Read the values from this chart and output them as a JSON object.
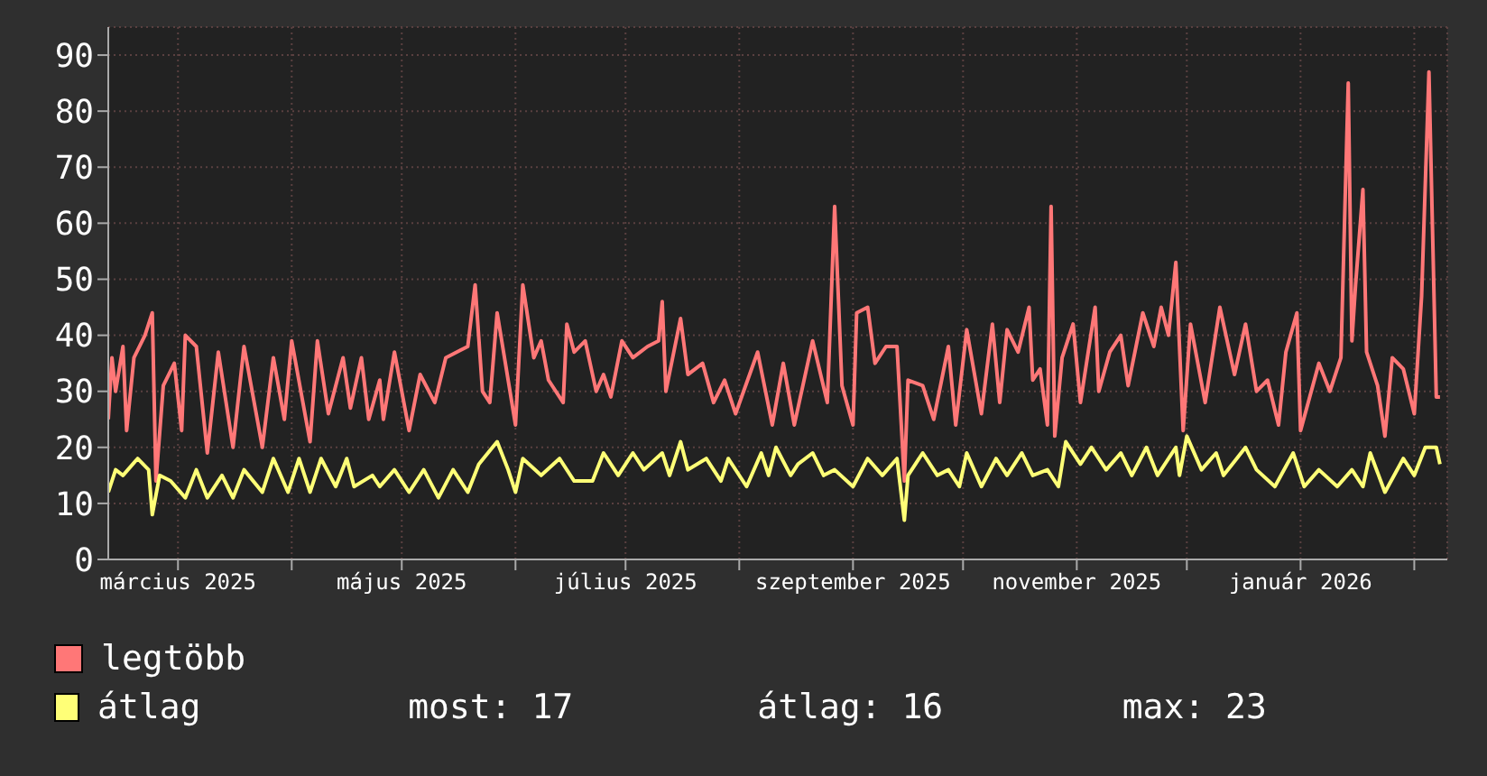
{
  "chart_data": {
    "type": "line",
    "xlim": [
      "2025-02-10",
      "2026-02-10"
    ],
    "xticks": [
      {
        "value": "2025-03-01",
        "label": "március 2025"
      },
      {
        "value": "2025-04-01",
        "label": null
      },
      {
        "value": "2025-05-01",
        "label": "május 2025"
      },
      {
        "value": "2025-06-01",
        "label": null
      },
      {
        "value": "2025-07-01",
        "label": "július 2025"
      },
      {
        "value": "2025-08-01",
        "label": null
      },
      {
        "value": "2025-09-01",
        "label": "szeptember 2025"
      },
      {
        "value": "2025-10-01",
        "label": null
      },
      {
        "value": "2025-11-01",
        "label": "november 2025"
      },
      {
        "value": "2025-12-01",
        "label": null
      },
      {
        "value": "2026-01-01",
        "label": "január 2026"
      },
      {
        "value": "2026-02-01",
        "label": null
      }
    ],
    "ylim": [
      0,
      95
    ],
    "yticks": [
      0,
      10,
      20,
      30,
      40,
      50,
      60,
      70,
      80,
      90
    ],
    "grid": true,
    "legend": "bottom",
    "marker": "none",
    "line_style": "solid",
    "annotations": [
      "most: 17",
      "átlag: 16",
      "max: 23"
    ],
    "series": [
      {
        "name": "legtöbb",
        "color": "#ff7777",
        "x": [
          "2025-02-10",
          "2025-02-11",
          "2025-02-12",
          "2025-02-14",
          "2025-02-15",
          "2025-02-17",
          "2025-02-20",
          "2025-02-22",
          "2025-02-23",
          "2025-02-25",
          "2025-02-28",
          "2025-03-02",
          "2025-03-03",
          "2025-03-06",
          "2025-03-09",
          "2025-03-12",
          "2025-03-16",
          "2025-03-19",
          "2025-03-24",
          "2025-03-27",
          "2025-03-30",
          "2025-04-01",
          "2025-04-06",
          "2025-04-08",
          "2025-04-11",
          "2025-04-15",
          "2025-04-17",
          "2025-04-20",
          "2025-04-22",
          "2025-04-25",
          "2025-04-26",
          "2025-04-29",
          "2025-05-03",
          "2025-05-06",
          "2025-05-10",
          "2025-05-13",
          "2025-05-19",
          "2025-05-21",
          "2025-05-23",
          "2025-05-25",
          "2025-05-27",
          "2025-06-01",
          "2025-06-03",
          "2025-06-06",
          "2025-06-08",
          "2025-06-10",
          "2025-06-14",
          "2025-06-15",
          "2025-06-17",
          "2025-06-20",
          "2025-06-23",
          "2025-06-25",
          "2025-06-27",
          "2025-06-30",
          "2025-07-03",
          "2025-07-07",
          "2025-07-10",
          "2025-07-11",
          "2025-07-12",
          "2025-07-16",
          "2025-07-18",
          "2025-07-22",
          "2025-07-25",
          "2025-07-28",
          "2025-07-31",
          "2025-08-06",
          "2025-08-10",
          "2025-08-13",
          "2025-08-16",
          "2025-08-21",
          "2025-08-25",
          "2025-08-27",
          "2025-08-29",
          "2025-09-01",
          "2025-09-02",
          "2025-09-05",
          "2025-09-07",
          "2025-09-10",
          "2025-09-13",
          "2025-09-15",
          "2025-09-16",
          "2025-09-20",
          "2025-09-23",
          "2025-09-27",
          "2025-09-29",
          "2025-10-02",
          "2025-10-06",
          "2025-10-09",
          "2025-10-11",
          "2025-10-13",
          "2025-10-16",
          "2025-10-19",
          "2025-10-20",
          "2025-10-22",
          "2025-10-24",
          "2025-10-25",
          "2025-10-26",
          "2025-10-28",
          "2025-10-31",
          "2025-11-02",
          "2025-11-06",
          "2025-11-07",
          "2025-11-10",
          "2025-11-13",
          "2025-11-15",
          "2025-11-19",
          "2025-11-22",
          "2025-11-24",
          "2025-11-26",
          "2025-11-28",
          "2025-11-30",
          "2025-12-02",
          "2025-12-06",
          "2025-12-10",
          "2025-12-14",
          "2025-12-17",
          "2025-12-20",
          "2025-12-23",
          "2025-12-26",
          "2025-12-28",
          "2025-12-31",
          "2026-01-01",
          "2026-01-06",
          "2026-01-09",
          "2026-01-12",
          "2026-01-14",
          "2026-01-15",
          "2026-01-16",
          "2026-01-18",
          "2026-01-19",
          "2026-01-22",
          "2026-01-24",
          "2026-01-26",
          "2026-01-29",
          "2026-02-01",
          "2026-02-03",
          "2026-02-05",
          "2026-02-07",
          "2026-02-08"
        ],
        "values": [
          25,
          36,
          30,
          38,
          23,
          36,
          40,
          44,
          14,
          31,
          35,
          23,
          40,
          38,
          19,
          37,
          20,
          38,
          20,
          36,
          25,
          39,
          21,
          39,
          26,
          36,
          27,
          36,
          25,
          32,
          25,
          37,
          23,
          33,
          28,
          36,
          38,
          49,
          30,
          28,
          44,
          24,
          49,
          36,
          39,
          32,
          28,
          42,
          37,
          39,
          30,
          33,
          29,
          39,
          36,
          38,
          39,
          46,
          30,
          43,
          33,
          35,
          28,
          32,
          26,
          37,
          24,
          35,
          24,
          39,
          28,
          63,
          31,
          24,
          44,
          45,
          35,
          38,
          38,
          14,
          32,
          31,
          25,
          38,
          24,
          41,
          26,
          42,
          28,
          41,
          37,
          45,
          32,
          34,
          24,
          63,
          22,
          36,
          42,
          28,
          45,
          30,
          37,
          40,
          31,
          44,
          38,
          45,
          40,
          53,
          23,
          42,
          28,
          45,
          33,
          42,
          30,
          32,
          24,
          37,
          44,
          23,
          35,
          30,
          36,
          85,
          39,
          49,
          66,
          37,
          31,
          22,
          36,
          34,
          26,
          47,
          87,
          29,
          29
        ]
      },
      {
        "name": "átlag",
        "color": "#ffff77",
        "x": [
          "2025-02-10",
          "2025-02-12",
          "2025-02-14",
          "2025-02-18",
          "2025-02-21",
          "2025-02-22",
          "2025-02-24",
          "2025-02-27",
          "2025-03-03",
          "2025-03-06",
          "2025-03-09",
          "2025-03-13",
          "2025-03-16",
          "2025-03-19",
          "2025-03-24",
          "2025-03-27",
          "2025-03-31",
          "2025-04-03",
          "2025-04-06",
          "2025-04-09",
          "2025-04-13",
          "2025-04-16",
          "2025-04-18",
          "2025-04-23",
          "2025-04-25",
          "2025-04-29",
          "2025-05-03",
          "2025-05-07",
          "2025-05-11",
          "2025-05-15",
          "2025-05-19",
          "2025-05-22",
          "2025-05-27",
          "2025-05-30",
          "2025-06-01",
          "2025-06-03",
          "2025-06-08",
          "2025-06-13",
          "2025-06-17",
          "2025-06-22",
          "2025-06-25",
          "2025-06-29",
          "2025-07-03",
          "2025-07-06",
          "2025-07-11",
          "2025-07-13",
          "2025-07-16",
          "2025-07-18",
          "2025-07-23",
          "2025-07-27",
          "2025-07-29",
          "2025-08-03",
          "2025-08-07",
          "2025-08-09",
          "2025-08-11",
          "2025-08-15",
          "2025-08-17",
          "2025-08-21",
          "2025-08-24",
          "2025-08-27",
          "2025-09-01",
          "2025-09-05",
          "2025-09-09",
          "2025-09-13",
          "2025-09-15",
          "2025-09-16",
          "2025-09-20",
          "2025-09-24",
          "2025-09-27",
          "2025-09-30",
          "2025-10-02",
          "2025-10-06",
          "2025-10-10",
          "2025-10-13",
          "2025-10-17",
          "2025-10-20",
          "2025-10-24",
          "2025-10-27",
          "2025-10-29",
          "2025-11-02",
          "2025-11-05",
          "2025-11-09",
          "2025-11-13",
          "2025-11-16",
          "2025-11-20",
          "2025-11-23",
          "2025-11-28",
          "2025-11-29",
          "2025-12-01",
          "2025-12-05",
          "2025-12-09",
          "2025-12-11",
          "2025-12-17",
          "2025-12-20",
          "2025-12-25",
          "2025-12-30",
          "2026-01-02",
          "2026-01-06",
          "2026-01-11",
          "2026-01-15",
          "2026-01-18",
          "2026-01-20",
          "2026-01-24",
          "2026-01-29",
          "2026-02-01",
          "2026-02-04",
          "2026-02-07",
          "2026-02-08"
        ],
        "values": [
          12,
          16,
          15,
          18,
          16,
          8,
          15,
          14,
          11,
          16,
          11,
          15,
          11,
          16,
          12,
          18,
          12,
          18,
          12,
          18,
          13,
          18,
          13,
          15,
          13,
          16,
          12,
          16,
          11,
          16,
          12,
          17,
          21,
          16,
          12,
          18,
          15,
          18,
          14,
          14,
          19,
          15,
          19,
          16,
          19,
          15,
          21,
          16,
          18,
          14,
          18,
          13,
          19,
          15,
          20,
          15,
          17,
          19,
          15,
          16,
          13,
          18,
          15,
          18,
          7,
          15,
          19,
          15,
          16,
          13,
          19,
          13,
          18,
          15,
          19,
          15,
          16,
          13,
          21,
          17,
          20,
          16,
          19,
          15,
          20,
          15,
          20,
          15,
          22,
          16,
          19,
          15,
          20,
          16,
          13,
          19,
          13,
          16,
          13,
          16,
          13,
          19,
          12,
          18,
          15,
          20,
          20,
          17
        ]
      }
    ]
  }
}
